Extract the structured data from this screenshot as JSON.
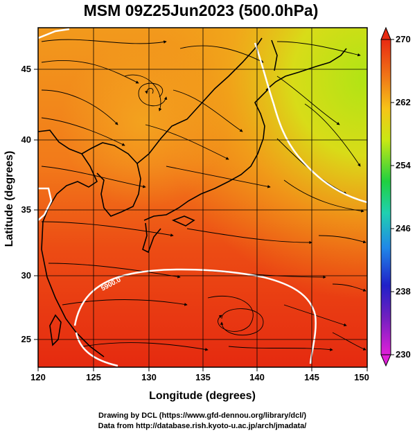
{
  "title": "MSM 09Z25Jun2023 (500.0hPa)",
  "xlabel": "Longitude (degrees)",
  "ylabel": "Latitude  (degrees)",
  "xticks": [
    "120",
    "125",
    "130",
    "135",
    "140",
    "145",
    "150"
  ],
  "yticks": [
    "25",
    "30",
    "35",
    "40",
    "45"
  ],
  "colorbar": {
    "ticks": [
      "270",
      "262",
      "254",
      "246",
      "238",
      "230"
    ],
    "min": 230,
    "max": 270
  },
  "contour_label": "5900.0",
  "credits": {
    "line1": "Drawing by DCL (https://www.gfd-dennou.org/library/dcl/)",
    "line2": "Data from http://database.rish.kyoto-u.ac.jp/arch/jmadata/"
  },
  "map": {
    "lon_range": [
      120,
      150
    ],
    "lat_range": [
      22.5,
      47.5
    ],
    "variable_units_note": "",
    "colors": {
      "hot": "#e83010",
      "warm": "#f06a18",
      "mild": "#f3a018",
      "cool": "#d6d418",
      "coolest": "#b6e414"
    }
  }
}
